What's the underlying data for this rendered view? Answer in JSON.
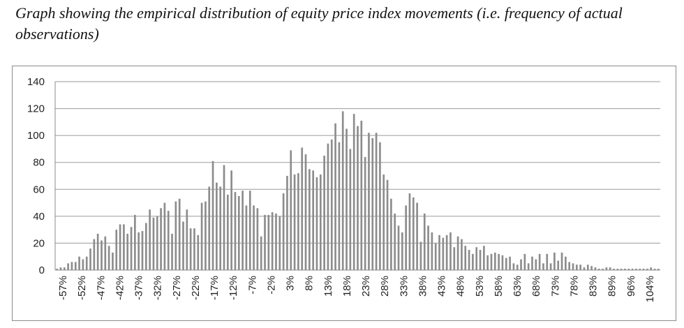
{
  "caption": "Graph showing the empirical distribution of equity price index movements (i.e. frequency of actual observations)",
  "chart_data": {
    "type": "bar",
    "title": "",
    "xlabel": "",
    "ylabel": "",
    "ylim": [
      0,
      140
    ],
    "yticks": [
      0,
      20,
      40,
      60,
      80,
      100,
      120,
      140
    ],
    "grid": "horizontal",
    "bar_color": "#8c8c8c",
    "x_start_percent": -57,
    "x_step_percent": 1,
    "xtick_labels": [
      "-57%",
      "-52%",
      "-47%",
      "-42%",
      "-37%",
      "-32%",
      "-27%",
      "-22%",
      "-17%",
      "-12%",
      "-7%",
      "-2%",
      "3%",
      "8%",
      "13%",
      "18%",
      "23%",
      "28%",
      "33%",
      "38%",
      "43%",
      "48%",
      "53%",
      "58%",
      "63%",
      "68%",
      "73%",
      "78%",
      "83%",
      "89%",
      "96%",
      "104%"
    ],
    "values": [
      1,
      2,
      2,
      5,
      6,
      6,
      10,
      8,
      10,
      16,
      23,
      27,
      22,
      25,
      18,
      13,
      30,
      34,
      34,
      27,
      32,
      41,
      28,
      29,
      35,
      45,
      39,
      40,
      46,
      50,
      44,
      27,
      51,
      53,
      36,
      45,
      31,
      31,
      26,
      50,
      51,
      62,
      81,
      65,
      62,
      78,
      56,
      74,
      58,
      55,
      59,
      48,
      59,
      48,
      46,
      25,
      41,
      41,
      43,
      42,
      40,
      57,
      70,
      89,
      71,
      72,
      91,
      86,
      75,
      74,
      69,
      71,
      85,
      94,
      97,
      109,
      95,
      118,
      105,
      90,
      116,
      107,
      111,
      84,
      102,
      98,
      102,
      95,
      71,
      67,
      53,
      42,
      33,
      28,
      48,
      57,
      54,
      50,
      21,
      42,
      33,
      28,
      20,
      26,
      24,
      26,
      28,
      17,
      25,
      23,
      18,
      15,
      12,
      17,
      15,
      18,
      11,
      12,
      13,
      12,
      11,
      9,
      10,
      5,
      4,
      8,
      12,
      5,
      10,
      8,
      12,
      5,
      12,
      5,
      13,
      7,
      13,
      10,
      6,
      5,
      4,
      4,
      2,
      4,
      3,
      2,
      1,
      1,
      2,
      2,
      1,
      1,
      1,
      1,
      1,
      1,
      1,
      1,
      1,
      1,
      2,
      1,
      1
    ]
  }
}
